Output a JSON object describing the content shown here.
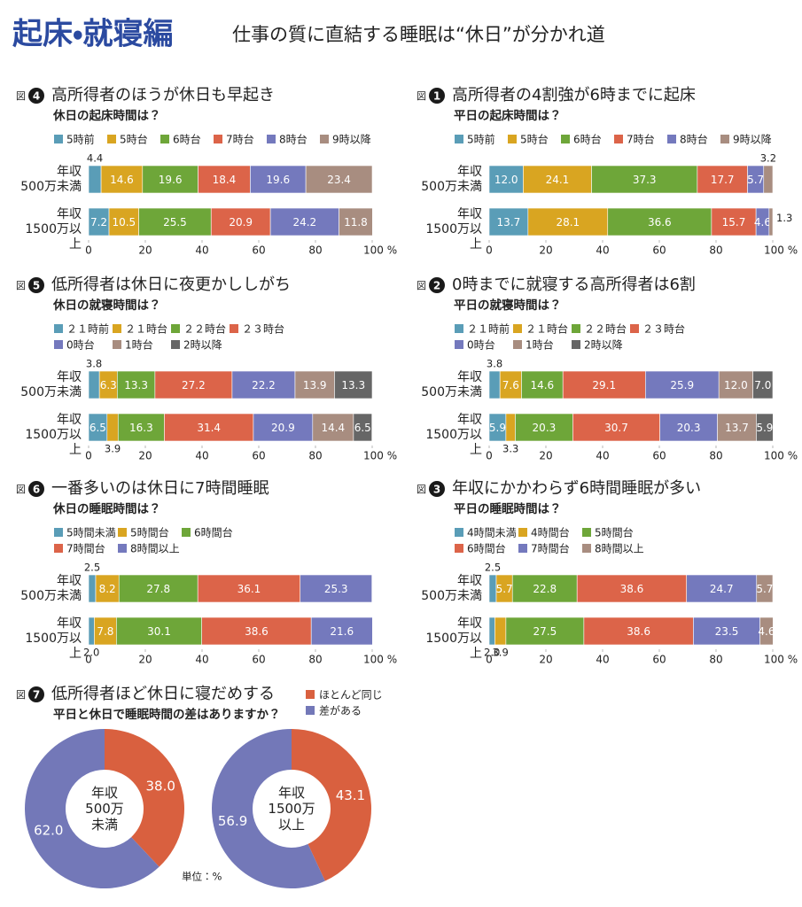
{
  "header": {
    "title": "起床・就寝編",
    "subtitle": "仕事の質に直結する睡眠は“休日”が分かれ道"
  },
  "chart_data": [
    {
      "type": "stacked_bar",
      "figure_prefix": "図",
      "figure_number": "4",
      "title": "高所得者のほうが休日も早起き",
      "subtitle": "休日の起床時間は？",
      "categories": [
        "年収\n500万未満",
        "年収\n1500万以上"
      ],
      "xlim": [
        0,
        100
      ],
      "xticks": [
        0,
        20,
        40,
        60,
        80,
        {
          "value": 100,
          "label": "100 %"
        }
      ],
      "series": [
        {
          "name": "5時前",
          "color": "#5a9db7",
          "values": [
            4.4,
            7.2
          ]
        },
        {
          "name": "5時台",
          "color": "#d9a521",
          "values": [
            14.6,
            10.5
          ]
        },
        {
          "name": "6時台",
          "color": "#6ea639",
          "values": [
            19.6,
            25.5
          ]
        },
        {
          "name": "7時台",
          "color": "#dc6449",
          "values": [
            18.4,
            20.9
          ]
        },
        {
          "name": "8時台",
          "color": "#7479bd",
          "values": [
            19.6,
            24.2
          ]
        },
        {
          "name": "9時以降",
          "color": "#a88d80",
          "values": [
            23.4,
            11.8
          ]
        }
      ]
    },
    {
      "type": "stacked_bar",
      "figure_prefix": "図",
      "figure_number": "1",
      "title": "高所得者の4割強が6時までに起床",
      "subtitle": "平日の起床時間は？",
      "categories": [
        "年収\n500万未満",
        "年収\n1500万以上"
      ],
      "xlim": [
        0,
        100
      ],
      "xticks": [
        0,
        20,
        40,
        60,
        80,
        {
          "value": 100,
          "label": "100 %"
        }
      ],
      "series": [
        {
          "name": "5時前",
          "color": "#5a9db7",
          "values": [
            12.0,
            13.7
          ],
          "value_labels": [
            "12.0",
            "13.7"
          ]
        },
        {
          "name": "5時台",
          "color": "#d9a521",
          "values": [
            24.1,
            28.1
          ]
        },
        {
          "name": "6時台",
          "color": "#6ea639",
          "values": [
            37.3,
            36.6
          ]
        },
        {
          "name": "7時台",
          "color": "#dc6449",
          "values": [
            17.7,
            15.7
          ]
        },
        {
          "name": "8時台",
          "color": "#7479bd",
          "values": [
            5.7,
            4.6
          ]
        },
        {
          "name": "9時以降",
          "color": "#a88d80",
          "values": [
            3.2,
            1.3
          ]
        }
      ]
    },
    {
      "type": "stacked_bar",
      "figure_prefix": "図",
      "figure_number": "5",
      "title": "低所得者は休日に夜更かししがち",
      "subtitle": "休日の就寝時間は？",
      "categories": [
        "年収\n500万未満",
        "年収\n1500万以上"
      ],
      "xlim": [
        0,
        100
      ],
      "xticks": [
        0,
        20,
        40,
        60,
        80,
        {
          "value": 100,
          "label": "100 %"
        }
      ],
      "series": [
        {
          "name": "２１時前",
          "color": "#5a9db7",
          "values": [
            3.8,
            6.5
          ]
        },
        {
          "name": "２１時台",
          "color": "#d9a521",
          "values": [
            6.3,
            3.9
          ]
        },
        {
          "name": "２２時台",
          "color": "#6ea639",
          "values": [
            13.3,
            16.3
          ]
        },
        {
          "name": "２３時台",
          "color": "#dc6449",
          "values": [
            27.2,
            31.4
          ]
        },
        {
          "name": "0時台",
          "color": "#7479bd",
          "values": [
            22.2,
            20.9
          ]
        },
        {
          "name": "1時台",
          "color": "#a88d80",
          "values": [
            13.9,
            14.4
          ]
        },
        {
          "name": "2時以降",
          "color": "#666666",
          "values": [
            13.3,
            6.5
          ]
        }
      ]
    },
    {
      "type": "stacked_bar",
      "figure_prefix": "図",
      "figure_number": "2",
      "title": "0時までに就寝する高所得者は6割",
      "subtitle": "平日の就寝時間は？",
      "categories": [
        "年収\n500万未満",
        "年収\n1500万以上"
      ],
      "xlim": [
        0,
        100
      ],
      "xticks": [
        0,
        20,
        40,
        60,
        80,
        {
          "value": 100,
          "label": "100 %"
        }
      ],
      "series": [
        {
          "name": "２１時前",
          "color": "#5a9db7",
          "values": [
            3.8,
            5.9
          ]
        },
        {
          "name": "２１時台",
          "color": "#d9a521",
          "values": [
            7.6,
            3.3
          ]
        },
        {
          "name": "２２時台",
          "color": "#6ea639",
          "values": [
            14.6,
            20.3
          ]
        },
        {
          "name": "２３時台",
          "color": "#dc6449",
          "values": [
            29.1,
            30.7
          ]
        },
        {
          "name": "0時台",
          "color": "#7479bd",
          "values": [
            25.9,
            20.3
          ]
        },
        {
          "name": "1時台",
          "color": "#a88d80",
          "values": [
            12.0,
            13.7
          ],
          "value_labels": [
            "12.0",
            "13.7"
          ]
        },
        {
          "name": "2時以降",
          "color": "#666666",
          "values": [
            7.0,
            5.9
          ],
          "value_labels": [
            "7.0",
            "5.9"
          ]
        }
      ]
    },
    {
      "type": "stacked_bar",
      "figure_prefix": "図",
      "figure_number": "6",
      "title": "一番多いのは休日に7時間睡眠",
      "subtitle": "休日の睡眠時間は？",
      "categories": [
        "年収\n500万未満",
        "年収\n1500万以上"
      ],
      "xlim": [
        0,
        100
      ],
      "xticks": [
        0,
        20,
        40,
        60,
        80,
        {
          "value": 100,
          "label": "100 %"
        }
      ],
      "series": [
        {
          "name": "5時間未満",
          "color": "#5a9db7",
          "values": [
            2.5,
            2.0
          ],
          "value_labels": [
            "2.5",
            "2.0"
          ]
        },
        {
          "name": "5時間台",
          "color": "#d9a521",
          "values": [
            8.2,
            7.8
          ]
        },
        {
          "name": "6時間台",
          "color": "#6ea639",
          "values": [
            27.8,
            30.1
          ]
        },
        {
          "name": "7時間台",
          "color": "#dc6449",
          "values": [
            36.1,
            38.6
          ]
        },
        {
          "name": "8時間以上",
          "color": "#7479bd",
          "values": [
            25.3,
            21.6
          ]
        }
      ]
    },
    {
      "type": "stacked_bar",
      "figure_prefix": "図",
      "figure_number": "3",
      "title": "年収にかかわらず6時間睡眠が多い",
      "subtitle": "平日の睡眠時間は？",
      "categories": [
        "年収\n500万未満",
        "年収\n1500万以上"
      ],
      "xlim": [
        0,
        100
      ],
      "xticks": [
        0,
        20,
        40,
        60,
        80,
        {
          "value": 100,
          "label": "100 %"
        }
      ],
      "series": [
        {
          "name": "4時間未満",
          "color": "#5a9db7",
          "values": [
            2.5,
            2.0
          ],
          "value_labels": [
            "2.5",
            "2.0"
          ]
        },
        {
          "name": "4時間台",
          "color": "#d9a521",
          "values": [
            5.7,
            3.9
          ]
        },
        {
          "name": "5時間台",
          "color": "#6ea639",
          "values": [
            22.8,
            27.5
          ]
        },
        {
          "name": "6時間台",
          "color": "#dc6449",
          "values": [
            38.6,
            38.6
          ]
        },
        {
          "name": "7時間台",
          "color": "#7479bd",
          "values": [
            24.7,
            23.5
          ]
        },
        {
          "name": "8時間以上",
          "color": "#a88d80",
          "values": [
            5.7,
            4.6
          ]
        }
      ]
    },
    {
      "type": "donut",
      "figure_prefix": "図",
      "figure_number": "7",
      "title": "低所得者ほど休日に寝だめする",
      "subtitle": "平日と休日で睡眠時間の差はありますか？",
      "categories": [
        "年収\n500万\n未満",
        "年収\n1500万\n以上"
      ],
      "series": [
        {
          "name": "ほとんど同じ",
          "color": "#d9603f",
          "values": [
            38.0,
            43.1
          ],
          "value_labels": [
            "38.0",
            "43.1"
          ]
        },
        {
          "name": "差がある",
          "color": "#7378b8",
          "values": [
            62.0,
            56.9
          ],
          "value_labels": [
            "62.0",
            "56.9"
          ]
        }
      ],
      "note": "単位：%"
    }
  ]
}
